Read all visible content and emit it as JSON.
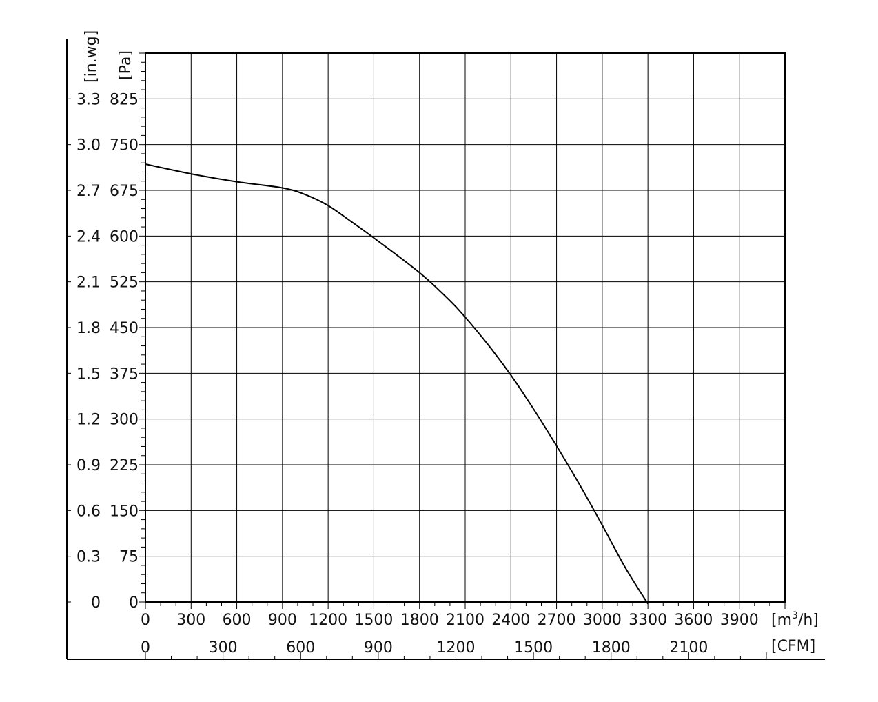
{
  "chart_data": {
    "type": "line",
    "title": "",
    "x_unit_primary": "[m³/h]",
    "x_unit_primary_base": "[m",
    "x_unit_primary_sup": "3",
    "x_unit_primary_end": "/h]",
    "x_unit_secondary": "[CFM]",
    "y_unit_primary": "[Pa]",
    "y_unit_secondary": "[in.wg]",
    "xlim": [
      0,
      4200
    ],
    "ylim": [
      0,
      900
    ],
    "x_ticks": [
      0,
      300,
      600,
      900,
      1200,
      1500,
      1800,
      2100,
      2400,
      2700,
      3000,
      3300,
      3600,
      3900
    ],
    "x_tick_labels": [
      "0",
      "300",
      "600",
      "900",
      "1200",
      "1500",
      "1800",
      "2100",
      "2400",
      "2700",
      "3000",
      "3300",
      "3600",
      "3900"
    ],
    "cfm_ticks": [
      0,
      300,
      600,
      900,
      1200,
      1500,
      1800,
      2100
    ],
    "cfm_tick_labels": [
      "0",
      "300",
      "600",
      "900",
      "1200",
      "1500",
      "1800",
      "2100"
    ],
    "y_ticks": [
      0,
      75,
      150,
      225,
      300,
      375,
      450,
      525,
      600,
      675,
      750,
      825
    ],
    "y_tick_labels": [
      "0",
      "75",
      "150",
      "225",
      "300",
      "375",
      "450",
      "525",
      "600",
      "675",
      "750",
      "825"
    ],
    "inwg_tick_labels": [
      "0",
      "0.3",
      "0.6",
      "0.9",
      "1.2",
      "1.5",
      "1.8",
      "2.1",
      "2.4",
      "2.7",
      "3.0",
      "3.3"
    ],
    "grid": true,
    "series": [
      {
        "x": [
          0,
          300,
          600,
          900,
          1050,
          1200,
          1350,
          1500,
          1800,
          2000,
          2100,
          2250,
          2400,
          2550,
          2700,
          2850,
          3000,
          3150,
          3300
        ],
        "y": [
          718,
          702,
          689,
          679,
          668,
          650,
          624,
          597,
          540,
          494,
          467,
          422,
          372,
          316,
          256,
          193,
          126,
          57,
          -3
        ]
      }
    ]
  }
}
